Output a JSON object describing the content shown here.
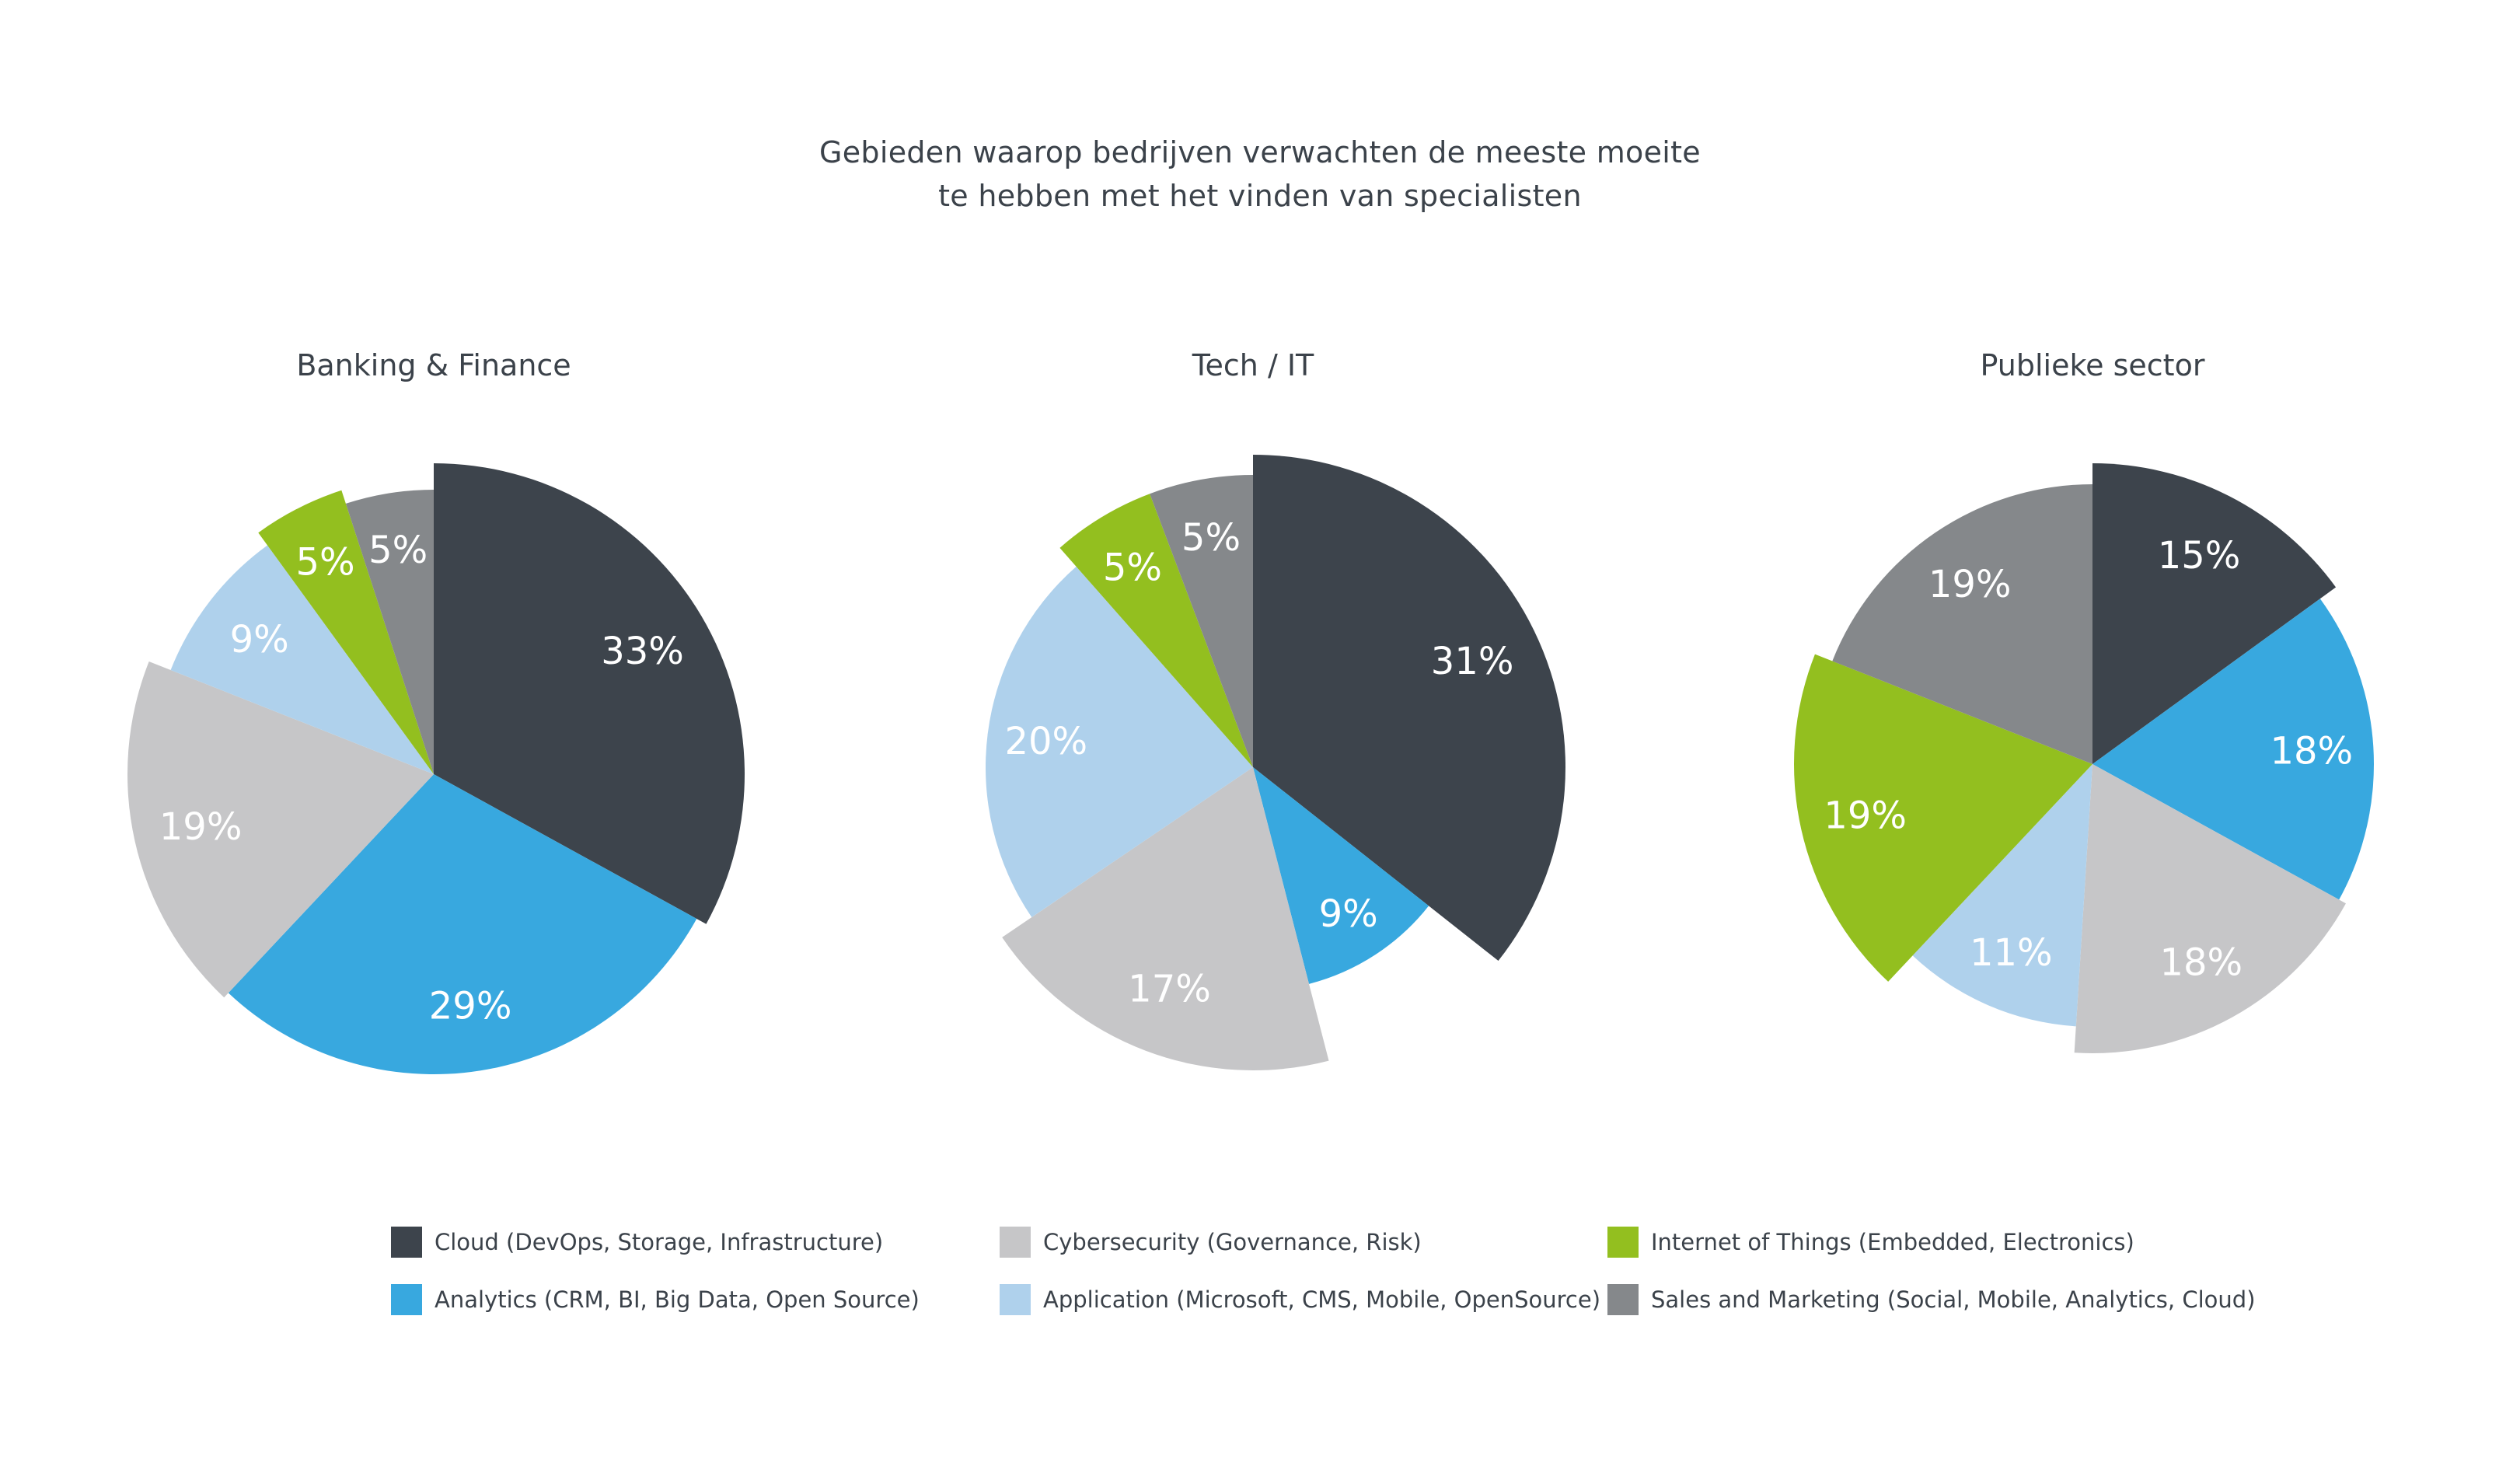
{
  "title": {
    "line1": "Gebieden waarop bedrijven verwachten de meeste moeite",
    "line2": "te hebben met het vinden van specialisten"
  },
  "categories": [
    {
      "key": "cloud",
      "label": "Cloud (DevOps, Storage, Infrastructure)",
      "color": "#3d444c"
    },
    {
      "key": "analytics",
      "label": "Analytics (CRM, BI, Big Data, Open Source)",
      "color": "#38a8df"
    },
    {
      "key": "cyber",
      "label": "Cybersecurity (Governance, Risk)",
      "color": "#c6c6c8"
    },
    {
      "key": "application",
      "label": "Application (Microsoft, CMS, Mobile, OpenSource)",
      "color": "#afd1ec"
    },
    {
      "key": "iot",
      "label": "Internet of Things (Embedded, Electronics)",
      "color": "#93bf1f"
    },
    {
      "key": "sales",
      "label": "Sales and Marketing (Social, Mobile, Analytics, Cloud)",
      "color": "#85888b"
    }
  ],
  "chart_data": [
    {
      "type": "pie",
      "title": "Banking & Finance",
      "slices": [
        {
          "category": "cloud",
          "value": 33,
          "label": "33%"
        },
        {
          "category": "analytics",
          "value": 29,
          "label": "29%"
        },
        {
          "category": "cyber",
          "value": 19,
          "label": "19%"
        },
        {
          "category": "application",
          "value": 9,
          "label": "9%"
        },
        {
          "category": "iot",
          "value": 5,
          "label": "5%"
        },
        {
          "category": "sales",
          "value": 5,
          "label": "5%"
        }
      ]
    },
    {
      "type": "pie",
      "title": "Tech / IT",
      "slices": [
        {
          "category": "cloud",
          "value": 31,
          "label": "31%"
        },
        {
          "category": "analytics",
          "value": 9,
          "label": "9%"
        },
        {
          "category": "cyber",
          "value": 17,
          "label": "17%"
        },
        {
          "category": "application",
          "value": 20,
          "label": "20%"
        },
        {
          "category": "iot",
          "value": 5,
          "label": "5%"
        },
        {
          "category": "sales",
          "value": 5,
          "label": "5%"
        }
      ]
    },
    {
      "type": "pie",
      "title": "Publieke sector",
      "slices": [
        {
          "category": "cloud",
          "value": 15,
          "label": "15%"
        },
        {
          "category": "analytics",
          "value": 18,
          "label": "18%"
        },
        {
          "category": "cyber",
          "value": 18,
          "label": "18%"
        },
        {
          "category": "application",
          "value": 11,
          "label": "11%"
        },
        {
          "category": "iot",
          "value": 19,
          "label": "19%"
        },
        {
          "category": "sales",
          "value": 19,
          "label": "19%"
        }
      ]
    }
  ]
}
